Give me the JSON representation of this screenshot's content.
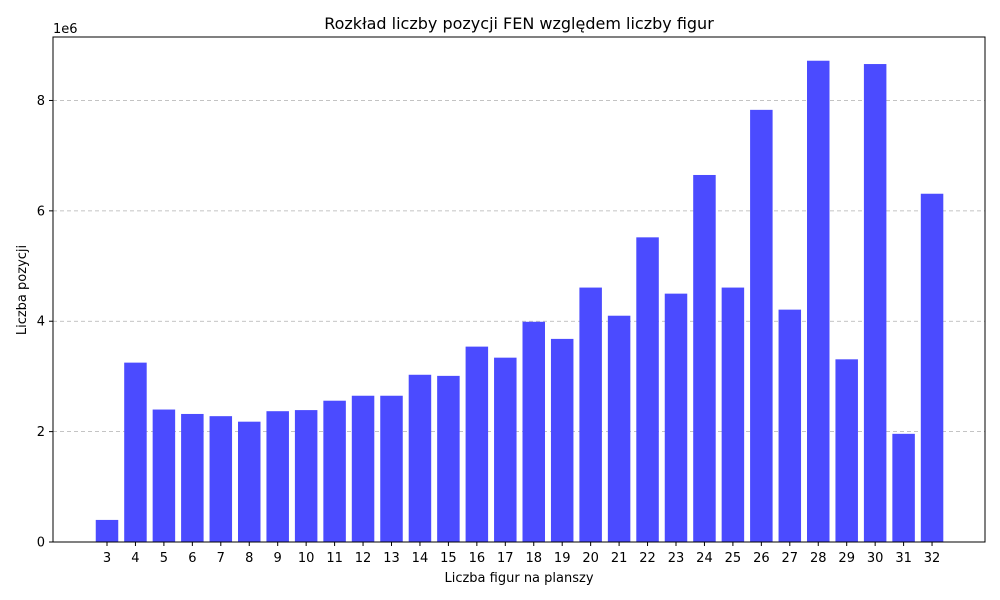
{
  "chart_data": {
    "type": "bar",
    "title": "Rozkład liczby pozycji FEN względem liczby figur",
    "xlabel": "Liczba figur na planszy",
    "ylabel": "Liczba pozycji",
    "y_offset_label": "1e6",
    "y_scale": 1000000,
    "ylim": [
      0,
      9.15
    ],
    "yticks": [
      0,
      2,
      4,
      6,
      8
    ],
    "ytick_labels": [
      "0",
      "2",
      "4",
      "6",
      "8"
    ],
    "grid": "y-dashed",
    "bar_color": "#4b4bff",
    "categories": [
      "3",
      "4",
      "5",
      "6",
      "7",
      "8",
      "9",
      "10",
      "11",
      "12",
      "13",
      "14",
      "15",
      "16",
      "17",
      "18",
      "19",
      "20",
      "21",
      "22",
      "23",
      "24",
      "25",
      "26",
      "27",
      "28",
      "29",
      "30",
      "31",
      "32"
    ],
    "values": [
      0.4,
      3.25,
      2.4,
      2.32,
      2.28,
      2.18,
      2.37,
      2.39,
      2.56,
      2.65,
      2.65,
      3.03,
      3.01,
      3.54,
      3.34,
      3.99,
      3.68,
      4.61,
      4.1,
      5.52,
      4.5,
      6.65,
      4.61,
      7.83,
      4.21,
      8.72,
      3.31,
      8.66,
      1.96,
      6.31
    ]
  }
}
